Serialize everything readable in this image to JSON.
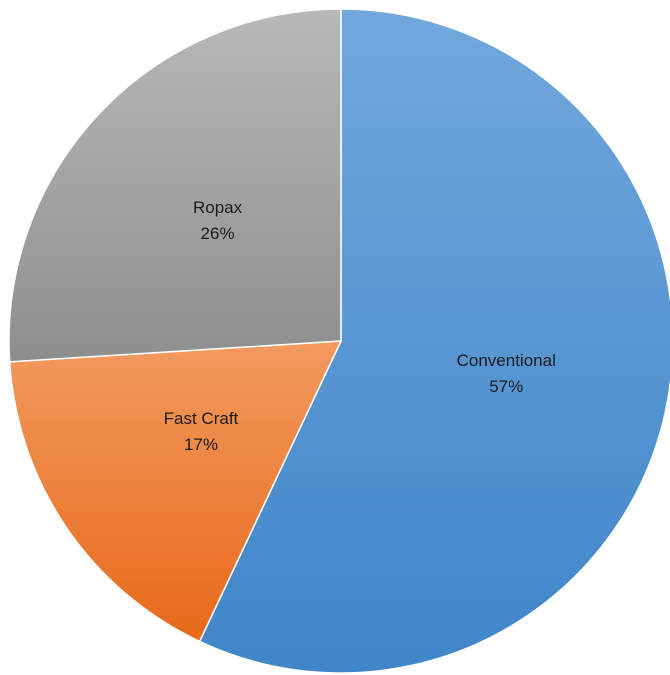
{
  "chart_data": {
    "type": "pie",
    "categories": [
      "Conventional",
      "Fast Craft",
      "Ropax"
    ],
    "values": [
      57,
      17,
      26
    ],
    "value_labels": [
      "57%",
      "17%",
      "26%"
    ],
    "colors": {
      "Conventional": [
        "#72a7dc",
        "#3f86c9"
      ],
      "Fast Craft": [
        "#f29a5f",
        "#e8691a"
      ],
      "Ropax": [
        "#b8b8b8",
        "#8e8e8e"
      ]
    },
    "start_angle_deg": 0,
    "direction": "clockwise",
    "legend": "none",
    "title": ""
  }
}
